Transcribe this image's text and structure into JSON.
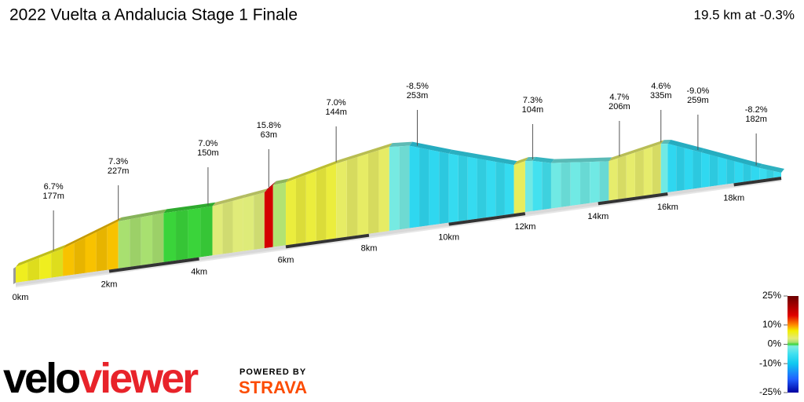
{
  "chart_data": {
    "type": "elevation-profile",
    "title": "2022 Vuelta a Andalucia Stage 1 Finale",
    "subtitle": "19.5 km at -0.3%",
    "xlim": [
      0,
      19.5
    ],
    "xticks": [
      {
        "value": 0,
        "label": "0km"
      },
      {
        "value": 2,
        "label": "2km"
      },
      {
        "value": 4,
        "label": "4km"
      },
      {
        "value": 6,
        "label": "6km"
      },
      {
        "value": 8,
        "label": "8km"
      },
      {
        "value": 10,
        "label": "10km"
      },
      {
        "value": 12,
        "label": "12km"
      },
      {
        "value": 14,
        "label": "14km"
      },
      {
        "value": 16,
        "label": "16km"
      },
      {
        "value": 18,
        "label": "18km"
      }
    ],
    "ylim": [
      0,
      480
    ],
    "x": [
      0,
      1,
      2.2,
      3.2,
      4.3,
      5.0,
      5.5,
      5.7,
      6.0,
      7.2,
      8.5,
      9.0,
      10,
      11.7,
      12.0,
      12.2,
      12.7,
      14.3,
      15.8,
      16.0,
      17,
      18.8,
      19.5
    ],
    "elevation": [
      80,
      140,
      240,
      250,
      250,
      270,
      284,
      316,
      320,
      380,
      428,
      420,
      352,
      248,
      260,
      256,
      232,
      200,
      252,
      248,
      180,
      60,
      20
    ],
    "annotations": [
      {
        "km": 0.8,
        "grade": 6.7,
        "grade_label": "6.7%",
        "length": 177,
        "length_label": "177m"
      },
      {
        "km": 2.2,
        "grade": 7.3,
        "grade_label": "7.3%",
        "length": 227,
        "length_label": "227m"
      },
      {
        "km": 4.2,
        "grade": 7.0,
        "grade_label": "7.0%",
        "length": 150,
        "length_label": "150m"
      },
      {
        "km": 5.6,
        "grade": 15.8,
        "grade_label": "15.8%",
        "length": 63,
        "length_label": "63m"
      },
      {
        "km": 7.2,
        "grade": 7.0,
        "grade_label": "7.0%",
        "length": 144,
        "length_label": "144m"
      },
      {
        "km": 9.2,
        "grade": -8.5,
        "grade_label": "-8.5%",
        "length": 253,
        "length_label": "253m"
      },
      {
        "km": 12.2,
        "grade": 7.3,
        "grade_label": "7.3%",
        "length": 104,
        "length_label": "104m"
      },
      {
        "km": 14.6,
        "grade": 4.7,
        "grade_label": "4.7%",
        "length": 206,
        "length_label": "206m"
      },
      {
        "km": 15.8,
        "grade": 4.6,
        "grade_label": "4.6%",
        "length": 335,
        "length_label": "335m"
      },
      {
        "km": 16.9,
        "grade": -9.0,
        "grade_label": "-9.0%",
        "length": 259,
        "length_label": "259m"
      },
      {
        "km": 18.7,
        "grade": -8.2,
        "grade_label": "-8.2%",
        "length": 182,
        "length_label": "182m"
      }
    ],
    "colorscale": [
      [
        25,
        "#6b0000"
      ],
      [
        15,
        "#e00000"
      ],
      [
        10,
        "#ff8c00"
      ],
      [
        7,
        "#f2ee00"
      ],
      [
        3,
        "#e4ec7a"
      ],
      [
        1,
        "#a8e070"
      ],
      [
        0,
        "#3ad43a"
      ],
      [
        -1,
        "#80ece0"
      ],
      [
        -5,
        "#40e0f0"
      ],
      [
        -10,
        "#10c8f0"
      ],
      [
        -18,
        "#2060ff"
      ],
      [
        -25,
        "#0000a0"
      ]
    ],
    "colorbar_ticks": [
      {
        "value": 25,
        "label": "25%"
      },
      {
        "value": 10,
        "label": "10%"
      },
      {
        "value": 0,
        "label": "0%"
      },
      {
        "value": -10,
        "label": "-10%"
      },
      {
        "value": -25,
        "label": "-25%"
      }
    ]
  },
  "branding": {
    "logo_part1": "velo",
    "logo_part2": "viewer",
    "powered_by": "POWERED BY",
    "strava": "STRAVA"
  }
}
